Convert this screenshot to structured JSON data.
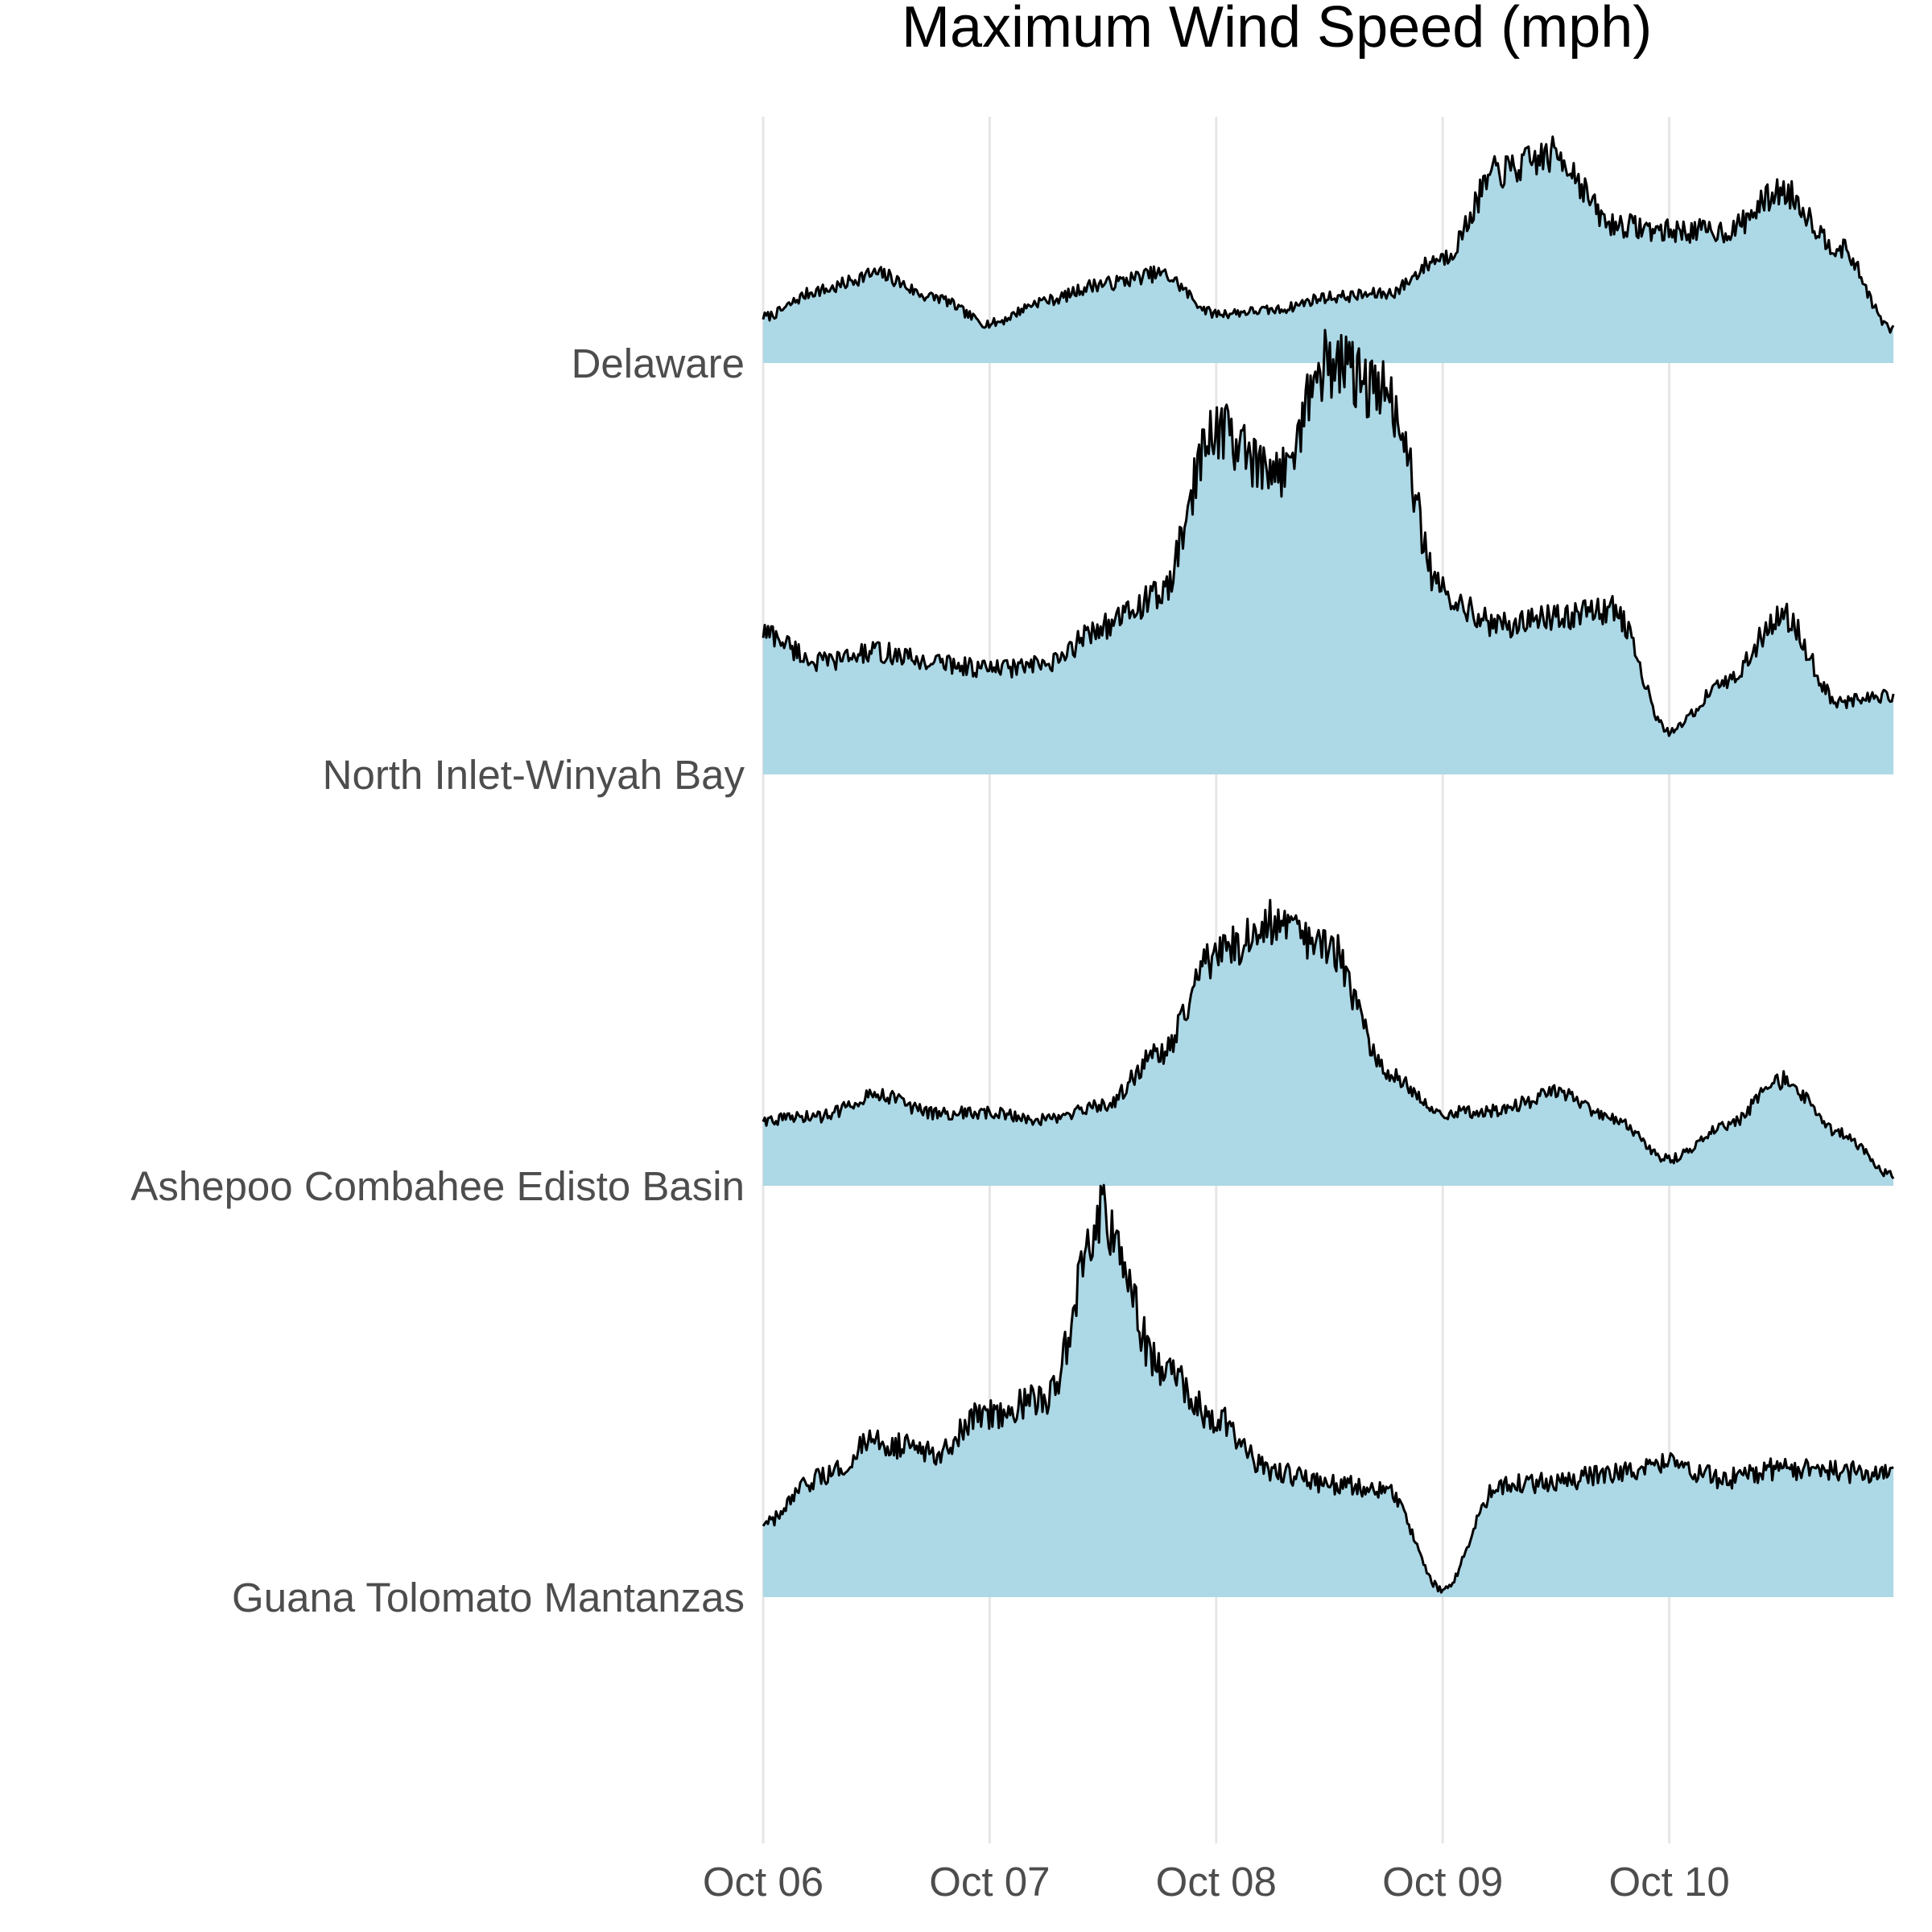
{
  "colors": {
    "fill": "#add8e6",
    "line": "#000000",
    "grid": "#e6e6e6",
    "label": "#4d4d4d"
  },
  "chart_data": {
    "type": "area",
    "subtype": "ridgeline",
    "title": "Maximum Wind Speed (mph)",
    "xlabel": "",
    "ylabel": "",
    "x_axis": {
      "type": "date",
      "ticks": [
        "Oct 06",
        "Oct 07",
        "Oct 08",
        "Oct 09",
        "Oct 10"
      ],
      "range": [
        "Oct 06 00:00",
        "Oct 10 23:45"
      ]
    },
    "grid": "vertical major lines only",
    "legend": "none",
    "x": [
      "Oct 06 00:00",
      "Oct 06 06:00",
      "Oct 06 12:00",
      "Oct 06 18:00",
      "Oct 07 00:00",
      "Oct 07 06:00",
      "Oct 07 12:00",
      "Oct 07 18:00",
      "Oct 08 00:00",
      "Oct 08 06:00",
      "Oct 08 12:00",
      "Oct 08 18:00",
      "Oct 09 00:00",
      "Oct 09 06:00",
      "Oct 09 12:00",
      "Oct 09 18:00",
      "Oct 10 00:00",
      "Oct 10 06:00",
      "Oct 10 12:00",
      "Oct 10 18:00",
      "Oct 10 23:45"
    ],
    "series": [
      {
        "name": "Delaware",
        "values": [
          14,
          22,
          27,
          20,
          12,
          19,
          24,
          27,
          15,
          16,
          20,
          21,
          32,
          58,
          63,
          42,
          40,
          40,
          52,
          35,
          10
        ]
      },
      {
        "name": "North Inlet-Winyah Bay",
        "values": [
          43,
          34,
          37,
          34,
          32,
          33,
          45,
          54,
          105,
          90,
          125,
          115,
          55,
          45,
          48,
          50,
          13,
          28,
          48,
          22,
          24
        ]
      },
      {
        "name": "Ashepoo Combahee Edisto Basin",
        "values": [
          20,
          21,
          28,
          22,
          22,
          20,
          24,
          40,
          70,
          80,
          72,
          35,
          22,
          23,
          28,
          20,
          8,
          18,
          32,
          16,
          3
        ]
      },
      {
        "name": "Guana Tolomato Mantanzas",
        "values": [
          22,
          36,
          47,
          44,
          56,
          60,
          115,
          70,
          54,
          38,
          34,
          33,
          2,
          34,
          35,
          38,
          40,
          36,
          39,
          38,
          37
        ]
      }
    ]
  }
}
